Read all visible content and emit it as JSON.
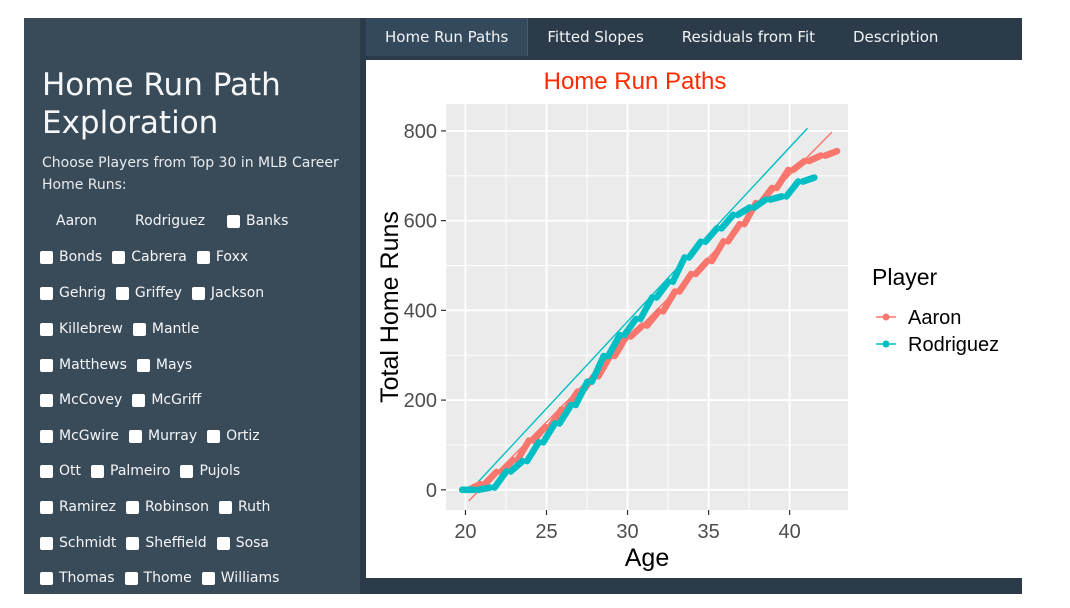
{
  "sidebar": {
    "title": "Home Run Path Exploration",
    "instruction": "Choose Players from Top 30 in MLB Career Home Runs:",
    "players": [
      {
        "name": "Aaron",
        "checked": true
      },
      {
        "name": "Rodriguez",
        "checked": true
      },
      {
        "name": "Banks",
        "checked": false
      },
      {
        "name": "Bonds",
        "checked": false
      },
      {
        "name": "Cabrera",
        "checked": false
      },
      {
        "name": "Foxx",
        "checked": false
      },
      {
        "name": "Gehrig",
        "checked": false
      },
      {
        "name": "Griffey",
        "checked": false
      },
      {
        "name": "Jackson",
        "checked": false
      },
      {
        "name": "Killebrew",
        "checked": false
      },
      {
        "name": "Mantle",
        "checked": false
      },
      {
        "name": "Matthews",
        "checked": false
      },
      {
        "name": "Mays",
        "checked": false
      },
      {
        "name": "McCovey",
        "checked": false
      },
      {
        "name": "McGriff",
        "checked": false
      },
      {
        "name": "McGwire",
        "checked": false
      },
      {
        "name": "Murray",
        "checked": false
      },
      {
        "name": "Ortiz",
        "checked": false
      },
      {
        "name": "Ott",
        "checked": false
      },
      {
        "name": "Palmeiro",
        "checked": false
      },
      {
        "name": "Pujols",
        "checked": false
      },
      {
        "name": "Ramirez",
        "checked": false
      },
      {
        "name": "Robinson",
        "checked": false
      },
      {
        "name": "Ruth",
        "checked": false
      },
      {
        "name": "Schmidt",
        "checked": false
      },
      {
        "name": "Sheffield",
        "checked": false
      },
      {
        "name": "Sosa",
        "checked": false
      },
      {
        "name": "Thomas",
        "checked": false
      },
      {
        "name": "Thome",
        "checked": false
      },
      {
        "name": "Williams",
        "checked": false
      }
    ]
  },
  "tabs": [
    {
      "label": "Home Run Paths",
      "active": true
    },
    {
      "label": "Fitted Slopes",
      "active": false
    },
    {
      "label": "Residuals from Fit",
      "active": false
    },
    {
      "label": "Description",
      "active": false
    }
  ],
  "chart_data": {
    "type": "scatter",
    "title": "Home Run Paths",
    "xlabel": "Age",
    "ylabel": "Total Home Runs",
    "xlim": [
      18.8,
      43.6
    ],
    "ylim": [
      -45,
      860
    ],
    "xticks": [
      20,
      25,
      30,
      35,
      40
    ],
    "yticks": [
      0,
      200,
      400,
      600,
      800
    ],
    "grid": true,
    "legend": {
      "title": "Player",
      "position": "right"
    },
    "colors": {
      "Aaron": "#f8766d",
      "Rodriguez": "#00bfc4",
      "title": "#ff2a00",
      "panel": "#ebebeb",
      "grid": "#ffffff"
    },
    "series": [
      {
        "name": "Aaron",
        "seasons": [
          {
            "age": 20.2,
            "start": 0,
            "end": 13
          },
          {
            "age": 21.2,
            "start": 13,
            "end": 40
          },
          {
            "age": 22.2,
            "start": 40,
            "end": 66
          },
          {
            "age": 23.2,
            "start": 66,
            "end": 110
          },
          {
            "age": 24.2,
            "start": 110,
            "end": 140
          },
          {
            "age": 25.2,
            "start": 140,
            "end": 179
          },
          {
            "age": 26.2,
            "start": 179,
            "end": 219
          },
          {
            "age": 27.2,
            "start": 219,
            "end": 253
          },
          {
            "age": 28.2,
            "start": 253,
            "end": 298
          },
          {
            "age": 29.2,
            "start": 298,
            "end": 342
          },
          {
            "age": 30.2,
            "start": 342,
            "end": 366
          },
          {
            "age": 31.2,
            "start": 366,
            "end": 398
          },
          {
            "age": 32.2,
            "start": 398,
            "end": 442
          },
          {
            "age": 33.2,
            "start": 442,
            "end": 481
          },
          {
            "age": 34.2,
            "start": 481,
            "end": 510
          },
          {
            "age": 35.2,
            "start": 510,
            "end": 554
          },
          {
            "age": 36.2,
            "start": 554,
            "end": 592
          },
          {
            "age": 37.2,
            "start": 592,
            "end": 639
          },
          {
            "age": 38.2,
            "start": 639,
            "end": 673
          },
          {
            "age": 39.2,
            "start": 673,
            "end": 713
          },
          {
            "age": 40.2,
            "start": 713,
            "end": 733
          },
          {
            "age": 41.2,
            "start": 733,
            "end": 745
          },
          {
            "age": 42.2,
            "start": 745,
            "end": 755
          }
        ],
        "fit": {
          "x": [
            20.2,
            42.6
          ],
          "y": [
            -25,
            797
          ]
        }
      },
      {
        "name": "Rodriguez",
        "seasons": [
          {
            "age": 19.8,
            "start": 0,
            "end": 0
          },
          {
            "age": 20.8,
            "start": 0,
            "end": 5
          },
          {
            "age": 21.8,
            "start": 5,
            "end": 41
          },
          {
            "age": 22.8,
            "start": 41,
            "end": 64
          },
          {
            "age": 23.8,
            "start": 64,
            "end": 106
          },
          {
            "age": 24.8,
            "start": 106,
            "end": 148
          },
          {
            "age": 25.8,
            "start": 148,
            "end": 189
          },
          {
            "age": 26.8,
            "start": 189,
            "end": 241
          },
          {
            "age": 27.8,
            "start": 241,
            "end": 298
          },
          {
            "age": 28.8,
            "start": 298,
            "end": 345
          },
          {
            "age": 29.8,
            "start": 345,
            "end": 381
          },
          {
            "age": 30.8,
            "start": 381,
            "end": 429
          },
          {
            "age": 31.8,
            "start": 429,
            "end": 464
          },
          {
            "age": 32.8,
            "start": 464,
            "end": 518
          },
          {
            "age": 33.8,
            "start": 518,
            "end": 553
          },
          {
            "age": 34.8,
            "start": 553,
            "end": 583
          },
          {
            "age": 35.8,
            "start": 583,
            "end": 613
          },
          {
            "age": 36.8,
            "start": 613,
            "end": 629
          },
          {
            "age": 37.8,
            "start": 629,
            "end": 647
          },
          {
            "age": 38.8,
            "start": 647,
            "end": 654
          },
          {
            "age": 39.8,
            "start": 654,
            "end": 687
          },
          {
            "age": 40.8,
            "start": 687,
            "end": 696
          }
        ],
        "fit": {
          "x": [
            20.2,
            41.1
          ],
          "y": [
            -5,
            806
          ]
        }
      }
    ]
  }
}
